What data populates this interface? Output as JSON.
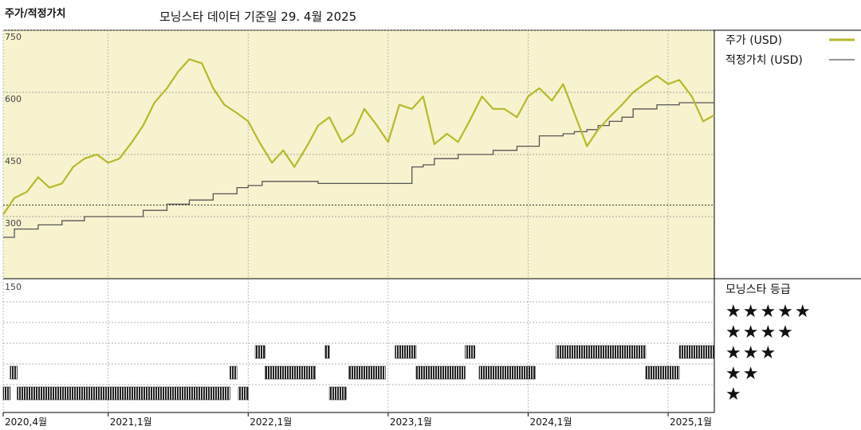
{
  "header": {
    "title": "주가/적정가치",
    "subtitle": "모닝스타 데이터 기준일 29. 4월 2025"
  },
  "colors": {
    "price": "#b7b82a",
    "fair_value": "#555555",
    "plot_bg": "#f7f3cf",
    "rating_bar": "#222222"
  },
  "chart_data": [
    {
      "type": "line",
      "title": "주가/적정가치",
      "ylim": [
        150,
        750
      ],
      "y_ticks": [
        "750",
        "600",
        "450",
        "300"
      ],
      "y_ticks_values": [
        750,
        600,
        450,
        300
      ],
      "x_ticks": [
        "2020,4월",
        "2021,1월",
        "2022,1월",
        "2023,1월",
        "2024,1월",
        "2025,1월"
      ],
      "x_ticks_values": [
        2020.25,
        2021.0,
        2022.0,
        2023.0,
        2024.0,
        2025.0
      ],
      "x_range": [
        2020.25,
        2025.33
      ],
      "grid": true,
      "legend": "right",
      "series": [
        {
          "name": "주가 (USD)",
          "x": [
            2020.25,
            2020.33,
            2020.42,
            2020.5,
            2020.58,
            2020.67,
            2020.75,
            2020.83,
            2020.92,
            2021.0,
            2021.08,
            2021.17,
            2021.25,
            2021.33,
            2021.42,
            2021.5,
            2021.58,
            2021.67,
            2021.75,
            2021.83,
            2021.92,
            2022.0,
            2022.08,
            2022.17,
            2022.25,
            2022.33,
            2022.42,
            2022.5,
            2022.58,
            2022.67,
            2022.75,
            2022.83,
            2022.92,
            2023.0,
            2023.08,
            2023.17,
            2023.25,
            2023.33,
            2023.42,
            2023.5,
            2023.58,
            2023.67,
            2023.75,
            2023.83,
            2023.92,
            2024.0,
            2024.08,
            2024.17,
            2024.25,
            2024.33,
            2024.42,
            2024.5,
            2024.58,
            2024.67,
            2024.75,
            2024.83,
            2024.92,
            2025.0,
            2025.08,
            2025.17,
            2025.25,
            2025.33
          ],
          "y": [
            305,
            345,
            360,
            395,
            370,
            380,
            420,
            440,
            450,
            430,
            440,
            480,
            520,
            575,
            610,
            650,
            680,
            670,
            610,
            570,
            550,
            530,
            480,
            430,
            460,
            420,
            470,
            520,
            540,
            480,
            500,
            560,
            520,
            480,
            570,
            560,
            590,
            475,
            500,
            480,
            530,
            590,
            560,
            560,
            540,
            590,
            610,
            580,
            620,
            550,
            470,
            510,
            540,
            570,
            600,
            620,
            640,
            620,
            630,
            590,
            530,
            545
          ]
        },
        {
          "name": "적정가치 (USD)",
          "x": [
            2020.25,
            2020.33,
            2020.5,
            2020.67,
            2020.83,
            2021.0,
            2021.25,
            2021.42,
            2021.58,
            2021.75,
            2021.92,
            2022.0,
            2022.1,
            2022.42,
            2022.5,
            2022.83,
            2022.92,
            2023.0,
            2023.17,
            2023.25,
            2023.33,
            2023.5,
            2023.75,
            2023.92,
            2024.0,
            2024.08,
            2024.25,
            2024.33,
            2024.42,
            2024.5,
            2024.58,
            2024.67,
            2024.75,
            2024.92,
            2025.0,
            2025.08,
            2025.33
          ],
          "y": [
            250,
            270,
            280,
            290,
            300,
            300,
            315,
            330,
            340,
            355,
            370,
            375,
            385,
            385,
            380,
            380,
            380,
            380,
            420,
            425,
            440,
            450,
            460,
            470,
            470,
            495,
            500,
            505,
            510,
            520,
            530,
            540,
            560,
            570,
            570,
            575,
            575
          ]
        }
      ]
    },
    {
      "type": "bar",
      "title": "모닝스타 등급",
      "y_tick_top": "150",
      "rating_levels": [
        "★★★★★",
        "★★★★",
        "★★★",
        "★★",
        "★"
      ],
      "rating_values": [
        5,
        4,
        3,
        2,
        1
      ],
      "series": [
        {
          "name": "모닝스타 등급",
          "segments": [
            {
              "start": 2020.25,
              "end": 2020.3,
              "rating": 1
            },
            {
              "start": 2020.3,
              "end": 2020.35,
              "rating": 2
            },
            {
              "start": 2020.35,
              "end": 2021.87,
              "rating": 1
            },
            {
              "start": 2021.87,
              "end": 2021.92,
              "rating": 2
            },
            {
              "start": 2021.93,
              "end": 2022.0,
              "rating": 1
            },
            {
              "start": 2022.05,
              "end": 2022.12,
              "rating": 3
            },
            {
              "start": 2022.12,
              "end": 2022.48,
              "rating": 2
            },
            {
              "start": 2022.55,
              "end": 2022.58,
              "rating": 3
            },
            {
              "start": 2022.58,
              "end": 2022.7,
              "rating": 1
            },
            {
              "start": 2022.72,
              "end": 2022.98,
              "rating": 2
            },
            {
              "start": 2023.05,
              "end": 2023.2,
              "rating": 3
            },
            {
              "start": 2023.2,
              "end": 2023.55,
              "rating": 2
            },
            {
              "start": 2023.55,
              "end": 2023.62,
              "rating": 3
            },
            {
              "start": 2023.65,
              "end": 2024.05,
              "rating": 2
            },
            {
              "start": 2024.2,
              "end": 2024.84,
              "rating": 3
            },
            {
              "start": 2024.84,
              "end": 2025.08,
              "rating": 2
            },
            {
              "start": 2025.08,
              "end": 2025.33,
              "rating": 3
            }
          ]
        }
      ]
    }
  ]
}
